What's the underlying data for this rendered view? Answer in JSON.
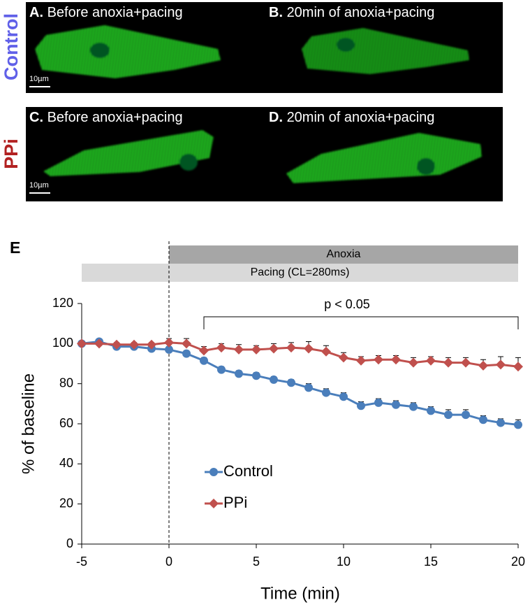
{
  "panels": [
    {
      "letter": "A.",
      "caption": "Before anoxia+pacing",
      "scale": "10µm"
    },
    {
      "letter": "B.",
      "caption": "20min of anoxia+pacing"
    },
    {
      "letter": "C.",
      "caption": "Before anoxia+pacing",
      "scale": "10µm"
    },
    {
      "letter": "D.",
      "caption": "20min of anoxia+pacing"
    }
  ],
  "row_labels": [
    "Control",
    "PPi"
  ],
  "chart_data": {
    "type": "line",
    "panel_label": "E",
    "xlabel": "Time (min)",
    "ylabel": "% of baseline",
    "x": [
      -5,
      -4,
      -3,
      -2,
      -1,
      0,
      1,
      2,
      3,
      4,
      5,
      6,
      7,
      8,
      9,
      10,
      11,
      12,
      13,
      14,
      15,
      16,
      17,
      18,
      19,
      20
    ],
    "xlim": [
      -5,
      20
    ],
    "xticks": [
      -5,
      0,
      5,
      10,
      15,
      20
    ],
    "ylim": [
      0,
      120
    ],
    "yticks": [
      0,
      20,
      40,
      60,
      80,
      100,
      120
    ],
    "legend": "center left",
    "vline": 0,
    "bands": [
      {
        "label": "Anoxia",
        "start": 0,
        "end": 20
      },
      {
        "label": "Pacing (CL=280ms)",
        "start": -5,
        "end": 20
      }
    ],
    "significance": {
      "label": "p < 0.05",
      "start": 2,
      "end": 20
    },
    "series": [
      {
        "name": "Control",
        "color": "#4a7ebb",
        "marker": "circle",
        "values": [
          100,
          101,
          98.5,
          98.5,
          97.5,
          97,
          95,
          91.5,
          87,
          85,
          84,
          82,
          80.5,
          78,
          75.5,
          73.5,
          69,
          70.5,
          69.5,
          68.5,
          66.5,
          64.5,
          64.5,
          62,
          60.5,
          59.5
        ],
        "errors": [
          0.5,
          1,
          1,
          1,
          1,
          1.5,
          1.5,
          1.5,
          1.5,
          1.5,
          1.5,
          1.5,
          1.5,
          2,
          2,
          2,
          2,
          2,
          2,
          2,
          2,
          2.5,
          2.5,
          2,
          2,
          2.5
        ]
      },
      {
        "name": "PPi",
        "color": "#c0504d",
        "marker": "diamond",
        "values": [
          100,
          100,
          99.5,
          99.5,
          99.5,
          100.5,
          100,
          96.5,
          98,
          97,
          97,
          97.5,
          98,
          97.5,
          96,
          93,
          91.5,
          92,
          92,
          90.5,
          91.5,
          90.5,
          90.5,
          89,
          89.5,
          88.5
        ],
        "errors": [
          1,
          1,
          1,
          1,
          1,
          2,
          2.5,
          2,
          2,
          2.5,
          2,
          2.5,
          2.5,
          3.5,
          3,
          2.5,
          2,
          2,
          2,
          2.5,
          2,
          2.5,
          2.5,
          3,
          4,
          4.5
        ]
      }
    ]
  }
}
